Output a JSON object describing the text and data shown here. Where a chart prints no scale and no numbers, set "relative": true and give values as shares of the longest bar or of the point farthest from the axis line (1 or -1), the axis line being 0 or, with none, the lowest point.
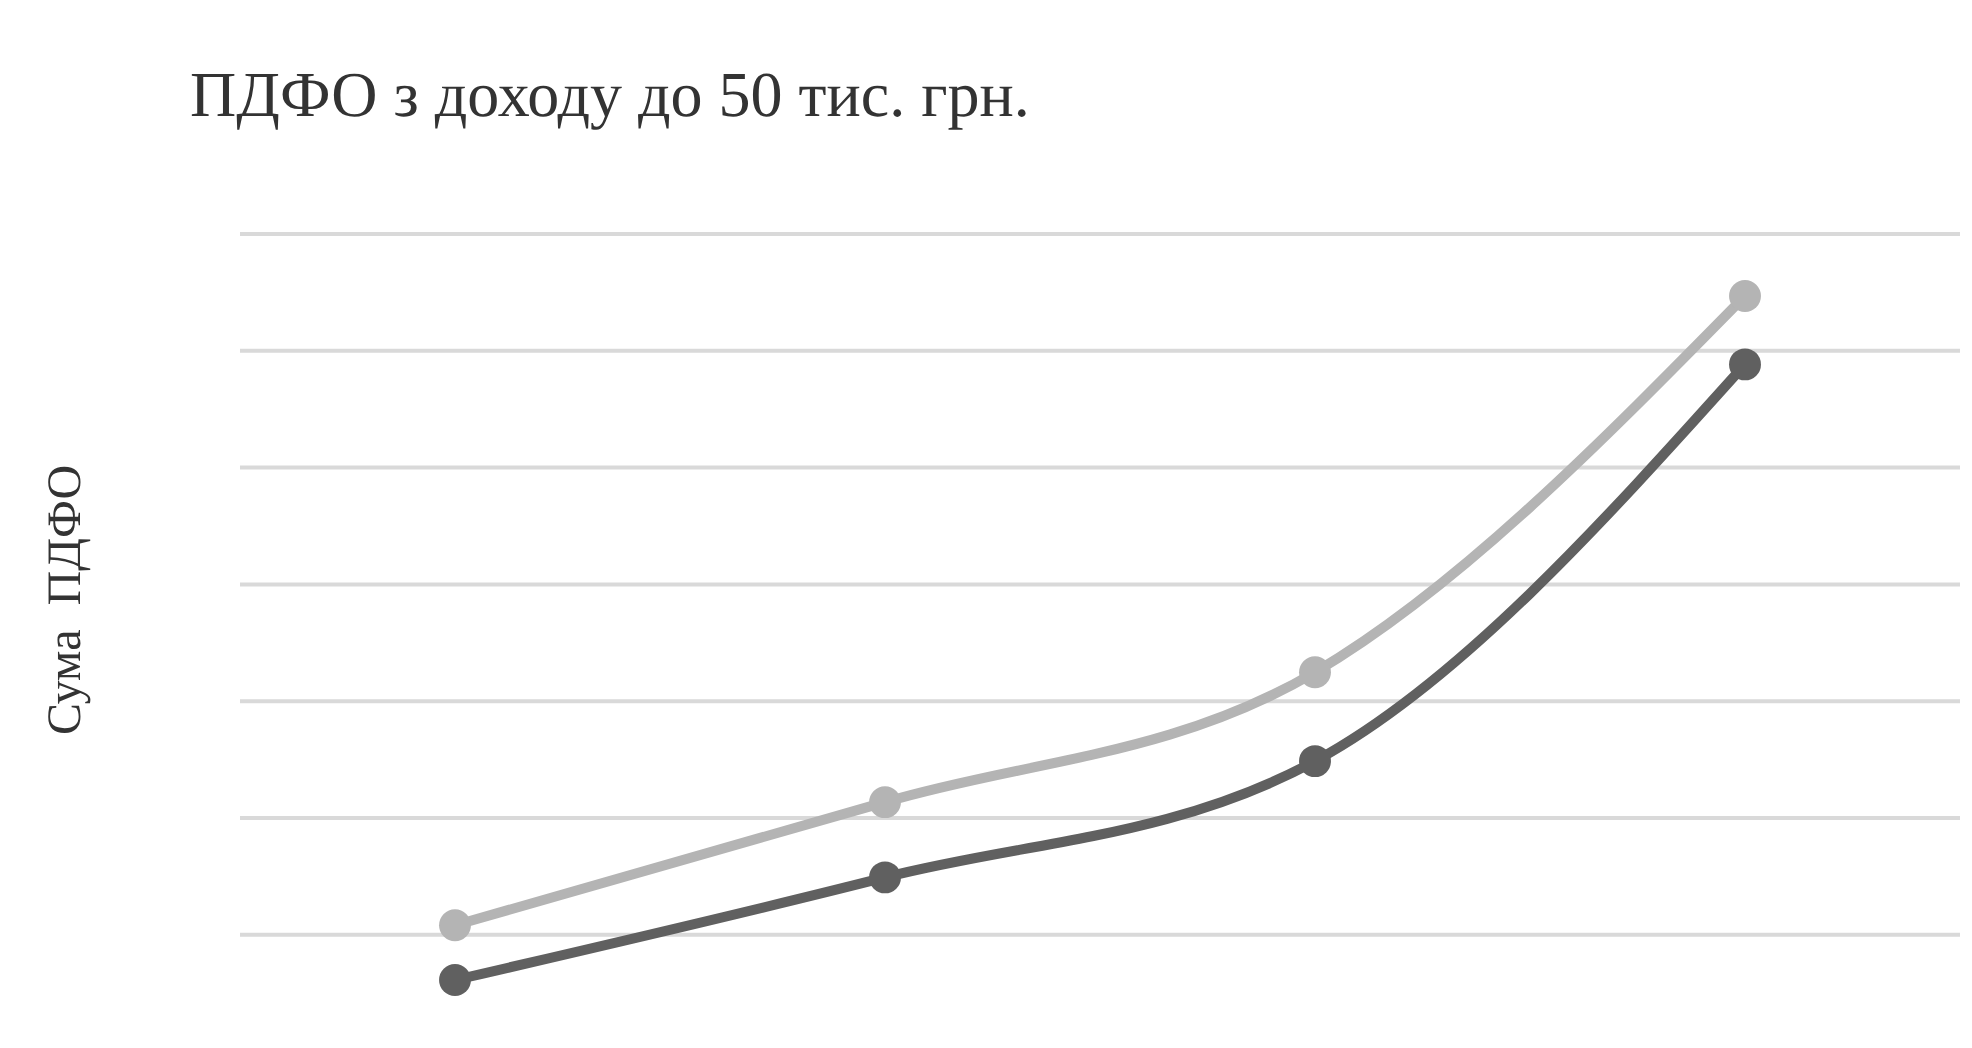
{
  "chart_data": {
    "type": "line",
    "title": "ПДФО з доходу до 50 тис. грн.",
    "ylabel": "Сума  ПДФО",
    "categories": [
      null,
      null,
      null,
      null
    ],
    "relative": true,
    "grid": true,
    "marker": "circle",
    "line_style": "solid",
    "series": [
      {
        "color": "#b4b4b4",
        "values": [
          0.08,
          0.26,
          0.45,
          1
        ]
      },
      {
        "color": "#606060",
        "values": [
          0,
          0.15,
          0.32,
          0.9
        ]
      }
    ]
  }
}
